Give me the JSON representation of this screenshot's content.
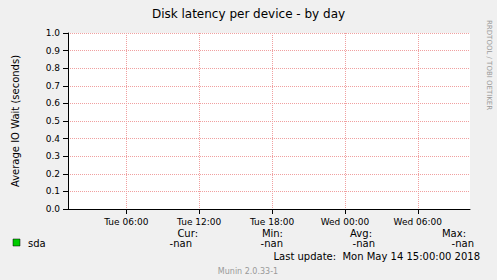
{
  "chart_data": {
    "type": "line",
    "title": "Disk latency per device - by day",
    "y_label": "Average IO Wait (seconds)",
    "x": [],
    "xlim": [
      1.2,
      34.3
    ],
    "xticks": [
      {
        "value": 6,
        "label": "Tue 06:00"
      },
      {
        "value": 12,
        "label": "Tue 12:00"
      },
      {
        "value": 18,
        "label": "Tue 18:00"
      },
      {
        "value": 24,
        "label": "Wed 00:00"
      },
      {
        "value": 30,
        "label": "Wed 06:00"
      }
    ],
    "ylim": [
      0,
      1
    ],
    "yticks": [
      {
        "value": 0,
        "label": "0.0"
      },
      0.1,
      0.2,
      0.3,
      0.4,
      0.5,
      0.6,
      0.7,
      0.8,
      0.9,
      {
        "value": 1,
        "label": "1.0"
      }
    ],
    "grid": true,
    "series": [
      {
        "name": "sda",
        "color": "#00cc00",
        "values": []
      }
    ],
    "stats": {
      "headers": [
        "Cur:",
        "Min:",
        "Avg:",
        "Max:"
      ],
      "values": [
        "-nan",
        "-nan",
        "-nan",
        "-nan"
      ]
    },
    "footer": "Last update:  Mon May 14 15:00:00 2018",
    "credit": "Munin 2.0.33-1",
    "side_text": "RRDTOOL / TOBI OETIKER"
  }
}
